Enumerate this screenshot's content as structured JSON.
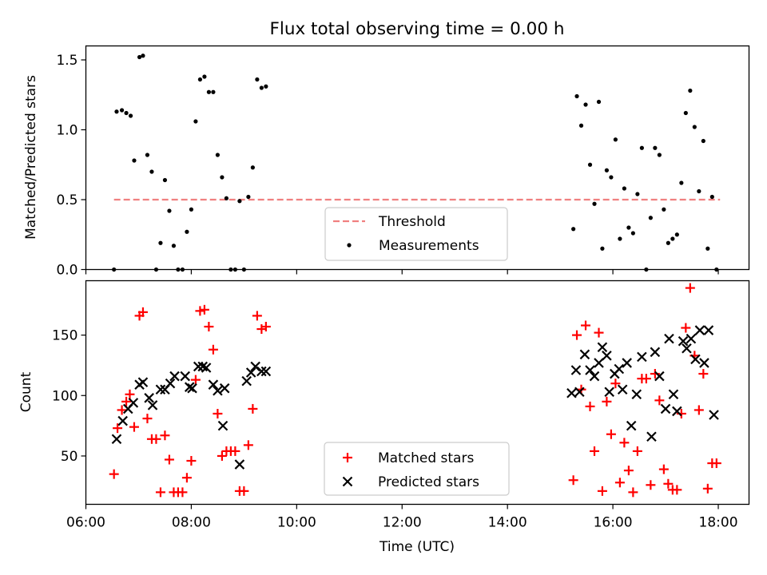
{
  "figure_title": "Flux total observing time = 0.00 h",
  "chart_data": [
    {
      "type": "scatter",
      "panel": "top",
      "xlabel": "",
      "ylabel": "Matched/Predicted stars",
      "xlim": [
        "06:00",
        "18:35"
      ],
      "ylim": [
        0,
        1.6
      ],
      "yticks": [
        0.0,
        0.5,
        1.0,
        1.5
      ],
      "ytick_labels": [
        "0.0",
        "0.5",
        "1.0",
        "1.5"
      ],
      "grid": false,
      "legend_position": "bottom-center",
      "threshold": {
        "name": "Threshold",
        "value": 0.5,
        "x_start": "06:32",
        "x_end": "18:02",
        "color": "#f08080"
      },
      "series": [
        {
          "name": "Measurements",
          "color": "#000000",
          "marker": "dot",
          "points": [
            [
              "06:32",
              0.0
            ],
            [
              "06:35",
              1.13
            ],
            [
              "06:41",
              1.14
            ],
            [
              "06:46",
              1.12
            ],
            [
              "06:51",
              1.1
            ],
            [
              "06:55",
              0.78
            ],
            [
              "07:01",
              1.52
            ],
            [
              "07:05",
              1.53
            ],
            [
              "07:10",
              0.82
            ],
            [
              "07:15",
              0.7
            ],
            [
              "07:20",
              0.0
            ],
            [
              "07:25",
              0.19
            ],
            [
              "07:30",
              0.64
            ],
            [
              "07:35",
              0.42
            ],
            [
              "07:40",
              0.17
            ],
            [
              "07:45",
              0.0
            ],
            [
              "07:50",
              0.0
            ],
            [
              "07:55",
              0.27
            ],
            [
              "08:00",
              0.43
            ],
            [
              "08:05",
              1.06
            ],
            [
              "08:10",
              1.36
            ],
            [
              "08:15",
              1.38
            ],
            [
              "08:20",
              1.27
            ],
            [
              "08:25",
              1.27
            ],
            [
              "08:30",
              0.82
            ],
            [
              "08:35",
              0.66
            ],
            [
              "08:40",
              0.51
            ],
            [
              "08:45",
              0.0
            ],
            [
              "08:50",
              0.0
            ],
            [
              "08:55",
              0.49
            ],
            [
              "09:00",
              0.0
            ],
            [
              "09:05",
              0.52
            ],
            [
              "09:10",
              0.73
            ],
            [
              "09:15",
              1.36
            ],
            [
              "09:20",
              1.3
            ],
            [
              "09:25",
              1.31
            ],
            [
              "15:15",
              0.29
            ],
            [
              "15:19",
              1.24
            ],
            [
              "15:24",
              1.03
            ],
            [
              "15:29",
              1.18
            ],
            [
              "15:34",
              0.75
            ],
            [
              "15:39",
              0.47
            ],
            [
              "15:44",
              1.2
            ],
            [
              "15:48",
              0.15
            ],
            [
              "15:53",
              0.71
            ],
            [
              "15:58",
              0.66
            ],
            [
              "16:03",
              0.93
            ],
            [
              "16:08",
              0.22
            ],
            [
              "16:13",
              0.58
            ],
            [
              "16:18",
              0.3
            ],
            [
              "16:23",
              0.26
            ],
            [
              "16:28",
              0.54
            ],
            [
              "16:33",
              0.87
            ],
            [
              "16:38",
              0.0
            ],
            [
              "16:43",
              0.37
            ],
            [
              "16:48",
              0.87
            ],
            [
              "16:53",
              0.82
            ],
            [
              "16:58",
              0.43
            ],
            [
              "17:03",
              0.19
            ],
            [
              "17:08",
              0.22
            ],
            [
              "17:13",
              0.25
            ],
            [
              "17:18",
              0.62
            ],
            [
              "17:23",
              1.12
            ],
            [
              "17:28",
              1.28
            ],
            [
              "17:33",
              1.02
            ],
            [
              "17:38",
              0.56
            ],
            [
              "17:43",
              0.92
            ],
            [
              "17:48",
              0.15
            ],
            [
              "17:53",
              0.52
            ],
            [
              "17:58",
              0.0
            ]
          ]
        }
      ]
    },
    {
      "type": "scatter",
      "panel": "bottom",
      "xlabel": "Time (UTC)",
      "ylabel": "Count",
      "xlim": [
        "06:00",
        "18:35"
      ],
      "ylim": [
        10,
        195
      ],
      "yticks": [
        50,
        100,
        150
      ],
      "ytick_labels": [
        "50",
        "100",
        "150"
      ],
      "xticks": [
        "06:00",
        "08:00",
        "10:00",
        "12:00",
        "14:00",
        "16:00",
        "18:00"
      ],
      "grid": false,
      "legend_position": "bottom-center",
      "series": [
        {
          "name": "Matched stars",
          "color": "#ff0000",
          "marker": "plus",
          "points": [
            [
              "06:32",
              35
            ],
            [
              "06:36",
              73
            ],
            [
              "06:41",
              88
            ],
            [
              "06:46",
              95
            ],
            [
              "06:50",
              101
            ],
            [
              "06:55",
              74
            ],
            [
              "07:01",
              166
            ],
            [
              "07:05",
              169
            ],
            [
              "07:10",
              81
            ],
            [
              "07:15",
              64
            ],
            [
              "07:20",
              64
            ],
            [
              "07:25",
              20
            ],
            [
              "07:30",
              67
            ],
            [
              "07:35",
              47
            ],
            [
              "07:40",
              20
            ],
            [
              "07:45",
              20
            ],
            [
              "07:50",
              20
            ],
            [
              "07:55",
              32
            ],
            [
              "08:00",
              46
            ],
            [
              "08:05",
              113
            ],
            [
              "08:10",
              170
            ],
            [
              "08:15",
              171
            ],
            [
              "08:20",
              157
            ],
            [
              "08:25",
              138
            ],
            [
              "08:30",
              85
            ],
            [
              "08:35",
              50
            ],
            [
              "08:40",
              54
            ],
            [
              "08:45",
              54
            ],
            [
              "08:50",
              54
            ],
            [
              "08:55",
              21
            ],
            [
              "09:00",
              21
            ],
            [
              "09:05",
              59
            ],
            [
              "09:10",
              89
            ],
            [
              "09:15",
              166
            ],
            [
              "09:20",
              155
            ],
            [
              "09:25",
              157
            ],
            [
              "15:15",
              30
            ],
            [
              "15:19",
              150
            ],
            [
              "15:24",
              105
            ],
            [
              "15:29",
              158
            ],
            [
              "15:34",
              91
            ],
            [
              "15:39",
              54
            ],
            [
              "15:44",
              152
            ],
            [
              "15:48",
              21
            ],
            [
              "15:53",
              95
            ],
            [
              "15:58",
              68
            ],
            [
              "16:03",
              110
            ],
            [
              "16:08",
              28
            ],
            [
              "16:13",
              61
            ],
            [
              "16:18",
              38
            ],
            [
              "16:23",
              20
            ],
            [
              "16:28",
              54
            ],
            [
              "16:33",
              114
            ],
            [
              "16:38",
              114
            ],
            [
              "16:43",
              26
            ],
            [
              "16:48",
              118
            ],
            [
              "16:53",
              96
            ],
            [
              "16:58",
              39
            ],
            [
              "17:03",
              27
            ],
            [
              "17:08",
              22
            ],
            [
              "17:13",
              22
            ],
            [
              "17:18",
              85
            ],
            [
              "17:23",
              156
            ],
            [
              "17:28",
              189
            ],
            [
              "17:33",
              133
            ],
            [
              "17:38",
              88
            ],
            [
              "17:43",
              118
            ],
            [
              "17:48",
              23
            ],
            [
              "17:53",
              44
            ],
            [
              "17:58",
              44
            ]
          ]
        },
        {
          "name": "Predicted stars",
          "color": "#000000",
          "marker": "x",
          "points": [
            [
              "06:35",
              64
            ],
            [
              "06:42",
              79
            ],
            [
              "06:48",
              89
            ],
            [
              "06:54",
              94
            ],
            [
              "07:01",
              109
            ],
            [
              "07:05",
              111
            ],
            [
              "07:12",
              98
            ],
            [
              "07:16",
              92
            ],
            [
              "07:25",
              105
            ],
            [
              "07:30",
              105
            ],
            [
              "07:36",
              110
            ],
            [
              "07:41",
              116
            ],
            [
              "07:53",
              116
            ],
            [
              "07:58",
              107
            ],
            [
              "08:01",
              106
            ],
            [
              "08:08",
              124
            ],
            [
              "08:13",
              124
            ],
            [
              "08:17",
              123
            ],
            [
              "08:25",
              109
            ],
            [
              "08:30",
              104
            ],
            [
              "08:36",
              75
            ],
            [
              "08:38",
              106
            ],
            [
              "08:55",
              43
            ],
            [
              "09:03",
              112
            ],
            [
              "09:08",
              119
            ],
            [
              "09:13",
              124
            ],
            [
              "09:20",
              120
            ],
            [
              "09:25",
              120
            ],
            [
              "15:13",
              102
            ],
            [
              "15:18",
              121
            ],
            [
              "15:22",
              103
            ],
            [
              "15:28",
              134
            ],
            [
              "15:34",
              121
            ],
            [
              "15:39",
              116
            ],
            [
              "15:44",
              127
            ],
            [
              "15:48",
              140
            ],
            [
              "15:53",
              133
            ],
            [
              "15:56",
              103
            ],
            [
              "16:02",
              118
            ],
            [
              "16:07",
              122
            ],
            [
              "16:11",
              105
            ],
            [
              "16:16",
              127
            ],
            [
              "16:21",
              75
            ],
            [
              "16:27",
              101
            ],
            [
              "16:33",
              132
            ],
            [
              "16:44",
              66
            ],
            [
              "16:48",
              136
            ],
            [
              "16:53",
              116
            ],
            [
              "17:00",
              89
            ],
            [
              "17:04",
              147
            ],
            [
              "17:09",
              101
            ],
            [
              "17:13",
              87
            ],
            [
              "17:20",
              145
            ],
            [
              "17:24",
              139
            ],
            [
              "17:29",
              147
            ],
            [
              "17:34",
              130
            ],
            [
              "17:39",
              154
            ],
            [
              "17:44",
              127
            ],
            [
              "17:49",
              154
            ],
            [
              "17:55",
              84
            ]
          ]
        }
      ]
    }
  ]
}
